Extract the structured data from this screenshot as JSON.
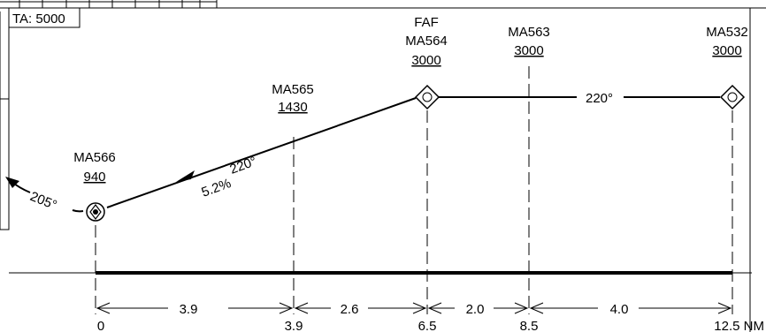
{
  "ta_box": {
    "label": "TA: 5000"
  },
  "fixes": {
    "ma566": {
      "name": "MA566",
      "altitude": "940"
    },
    "ma565": {
      "name": "MA565",
      "altitude": "1430"
    },
    "ma564": {
      "role": "FAF",
      "name": "MA564",
      "altitude": "3000"
    },
    "ma563": {
      "name": "MA563",
      "altitude": "3000"
    },
    "ma532": {
      "name": "MA532",
      "altitude": "3000"
    }
  },
  "tracks": {
    "missed_turn": "205°",
    "inbound_course": "220°",
    "level_course": "220°",
    "gradient": "5.2%"
  },
  "segments": {
    "seg1": "3.9",
    "seg2": "2.6",
    "seg3": "2.0",
    "seg4": "4.0"
  },
  "distance_marks": {
    "d0": "0",
    "d1": "3.9",
    "d2": "6.5",
    "d3": "8.5",
    "d4": "12.5 NM"
  }
}
